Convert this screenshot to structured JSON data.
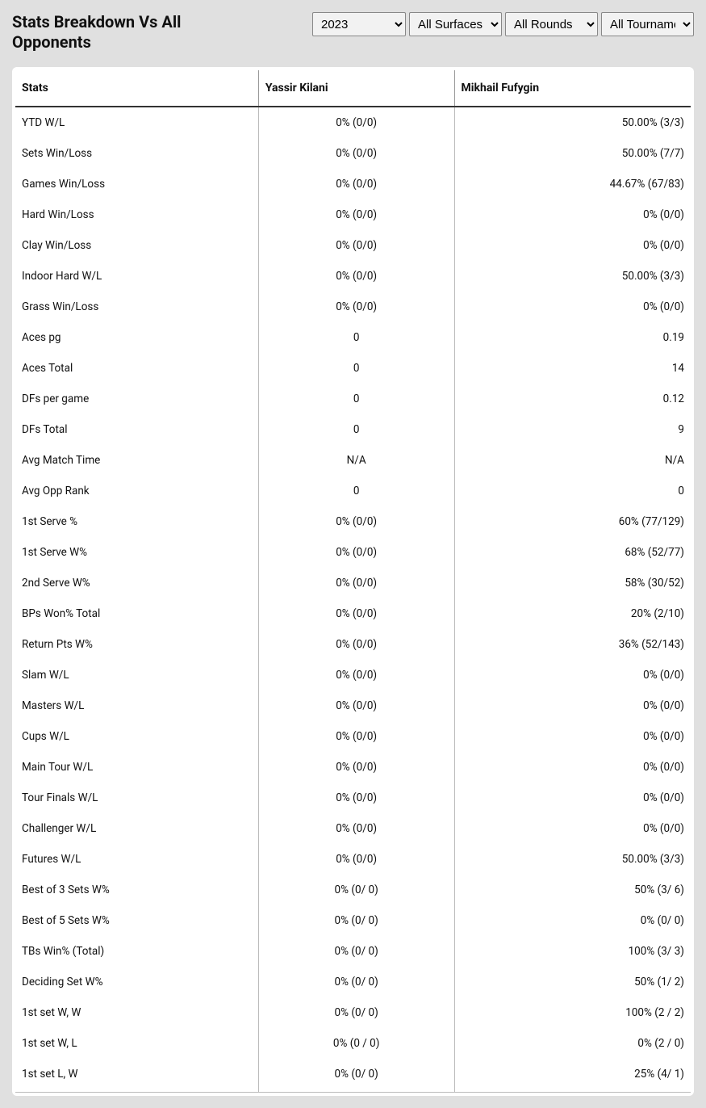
{
  "title": "Stats Breakdown Vs All Opponents",
  "filters": {
    "year": {
      "selected": "2023",
      "options": [
        "2023"
      ]
    },
    "surface": {
      "selected": "All Surfaces",
      "options": [
        "All Surfaces"
      ]
    },
    "rounds": {
      "selected": "All Rounds",
      "options": [
        "All Rounds"
      ]
    },
    "tournaments": {
      "selected": "All Tournaments",
      "options": [
        "All Tournaments"
      ]
    }
  },
  "columns": {
    "stat": "Stats",
    "p1": "Yassir Kilani",
    "p2": "Mikhail Fufygin"
  },
  "rows": [
    {
      "stat": "YTD W/L",
      "p1": "0% (0/0)",
      "p2": "50.00% (3/3)"
    },
    {
      "stat": "Sets Win/Loss",
      "p1": "0% (0/0)",
      "p2": "50.00% (7/7)"
    },
    {
      "stat": "Games Win/Loss",
      "p1": "0% (0/0)",
      "p2": "44.67% (67/83)"
    },
    {
      "stat": "Hard Win/Loss",
      "p1": "0% (0/0)",
      "p2": "0% (0/0)"
    },
    {
      "stat": "Clay Win/Loss",
      "p1": "0% (0/0)",
      "p2": "0% (0/0)"
    },
    {
      "stat": "Indoor Hard W/L",
      "p1": "0% (0/0)",
      "p2": "50.00% (3/3)"
    },
    {
      "stat": "Grass Win/Loss",
      "p1": "0% (0/0)",
      "p2": "0% (0/0)"
    },
    {
      "stat": "Aces pg",
      "p1": "0",
      "p2": "0.19"
    },
    {
      "stat": "Aces Total",
      "p1": "0",
      "p2": "14"
    },
    {
      "stat": "DFs per game",
      "p1": "0",
      "p2": "0.12"
    },
    {
      "stat": "DFs Total",
      "p1": "0",
      "p2": "9"
    },
    {
      "stat": "Avg Match Time",
      "p1": "N/A",
      "p2": "N/A"
    },
    {
      "stat": "Avg Opp Rank",
      "p1": "0",
      "p2": "0"
    },
    {
      "stat": "1st Serve %",
      "p1": "0% (0/0)",
      "p2": "60% (77/129)"
    },
    {
      "stat": "1st Serve W%",
      "p1": "0% (0/0)",
      "p2": "68% (52/77)"
    },
    {
      "stat": "2nd Serve W%",
      "p1": "0% (0/0)",
      "p2": "58% (30/52)"
    },
    {
      "stat": "BPs Won% Total",
      "p1": "0% (0/0)",
      "p2": "20% (2/10)"
    },
    {
      "stat": "Return Pts W%",
      "p1": "0% (0/0)",
      "p2": "36% (52/143)"
    },
    {
      "stat": "Slam W/L",
      "p1": "0% (0/0)",
      "p2": "0% (0/0)"
    },
    {
      "stat": "Masters W/L",
      "p1": "0% (0/0)",
      "p2": "0% (0/0)"
    },
    {
      "stat": "Cups W/L",
      "p1": "0% (0/0)",
      "p2": "0% (0/0)"
    },
    {
      "stat": "Main Tour W/L",
      "p1": "0% (0/0)",
      "p2": "0% (0/0)"
    },
    {
      "stat": "Tour Finals W/L",
      "p1": "0% (0/0)",
      "p2": "0% (0/0)"
    },
    {
      "stat": "Challenger W/L",
      "p1": "0% (0/0)",
      "p2": "0% (0/0)"
    },
    {
      "stat": "Futures W/L",
      "p1": "0% (0/0)",
      "p2": "50.00% (3/3)"
    },
    {
      "stat": "Best of 3 Sets W%",
      "p1": "0% (0/ 0)",
      "p2": "50% (3/ 6)"
    },
    {
      "stat": "Best of 5 Sets W%",
      "p1": "0% (0/ 0)",
      "p2": "0% (0/ 0)"
    },
    {
      "stat": "TBs Win% (Total)",
      "p1": "0% (0/ 0)",
      "p2": "100% (3/ 3)"
    },
    {
      "stat": "Deciding Set W%",
      "p1": "0% (0/ 0)",
      "p2": "50% (1/ 2)"
    },
    {
      "stat": "1st set W, W",
      "p1": "0% (0/ 0)",
      "p2": "100% (2 / 2)"
    },
    {
      "stat": "1st set W, L",
      "p1": "0% (0 / 0)",
      "p2": "0% (2 / 0)"
    },
    {
      "stat": "1st set L, W",
      "p1": "0% (0/ 0)",
      "p2": "25% (4/ 1)"
    }
  ]
}
